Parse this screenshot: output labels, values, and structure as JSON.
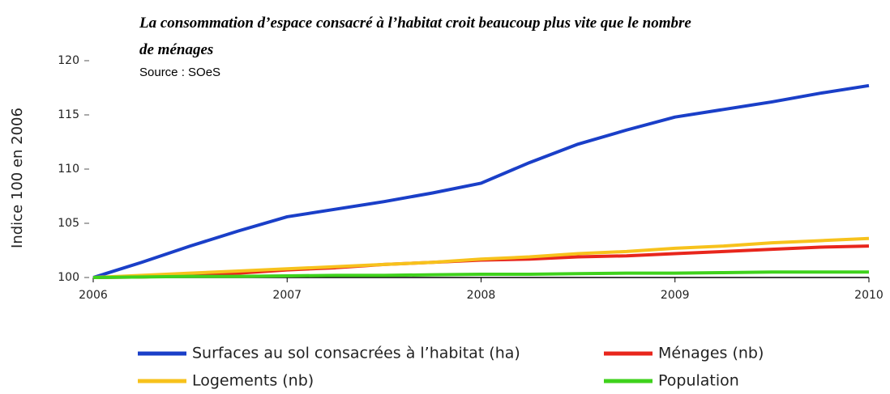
{
  "chart_data": {
    "type": "line",
    "title": "La consommation d’espace consacré à l’habitat croit beaucoup plus vite que le nombre de ménages",
    "subtitle": "Source : SOeS",
    "y_label": "Indice 100 en 2006",
    "x": [
      2006,
      2006.25,
      2006.5,
      2006.75,
      2007,
      2007.25,
      2007.5,
      2007.75,
      2008,
      2008.25,
      2008.5,
      2008.75,
      2009,
      2009.25,
      2009.5,
      2009.75,
      2010
    ],
    "series": [
      {
        "name": "Surfaces au sol consacrées à l’habitat (ha)",
        "color": "#1a3fc8",
        "values": [
          100,
          101.4,
          102.9,
          104.3,
          105.6,
          106.3,
          107.0,
          107.8,
          108.7,
          110.6,
          112.3,
          113.6,
          114.8,
          115.5,
          116.2,
          117.0,
          117.7
        ]
      },
      {
        "name": "Ménages (nb)",
        "color": "#e8261c",
        "values": [
          100,
          100.05,
          100.2,
          100.4,
          100.7,
          100.9,
          101.2,
          101.4,
          101.6,
          101.7,
          101.9,
          102.0,
          102.2,
          102.4,
          102.6,
          102.8,
          102.9
        ]
      },
      {
        "name": "Logements (nb)",
        "color": "#f7c21c",
        "values": [
          100,
          100.2,
          100.4,
          100.6,
          100.8,
          101.0,
          101.2,
          101.4,
          101.7,
          101.9,
          102.2,
          102.4,
          102.7,
          102.9,
          103.2,
          103.4,
          103.6
        ]
      },
      {
        "name": "Population",
        "color": "#3fd21c",
        "values": [
          100,
          100.05,
          100.1,
          100.1,
          100.15,
          100.2,
          100.2,
          100.25,
          100.3,
          100.3,
          100.35,
          100.4,
          100.4,
          100.45,
          100.5,
          100.5,
          100.5
        ]
      }
    ],
    "xlim": [
      2006,
      2010
    ],
    "xticks": [
      2006,
      2007,
      2008,
      2009,
      2010
    ],
    "ylim": [
      100,
      120
    ],
    "yticks": [
      100,
      105,
      110,
      115,
      120
    ],
    "grid": false
  }
}
